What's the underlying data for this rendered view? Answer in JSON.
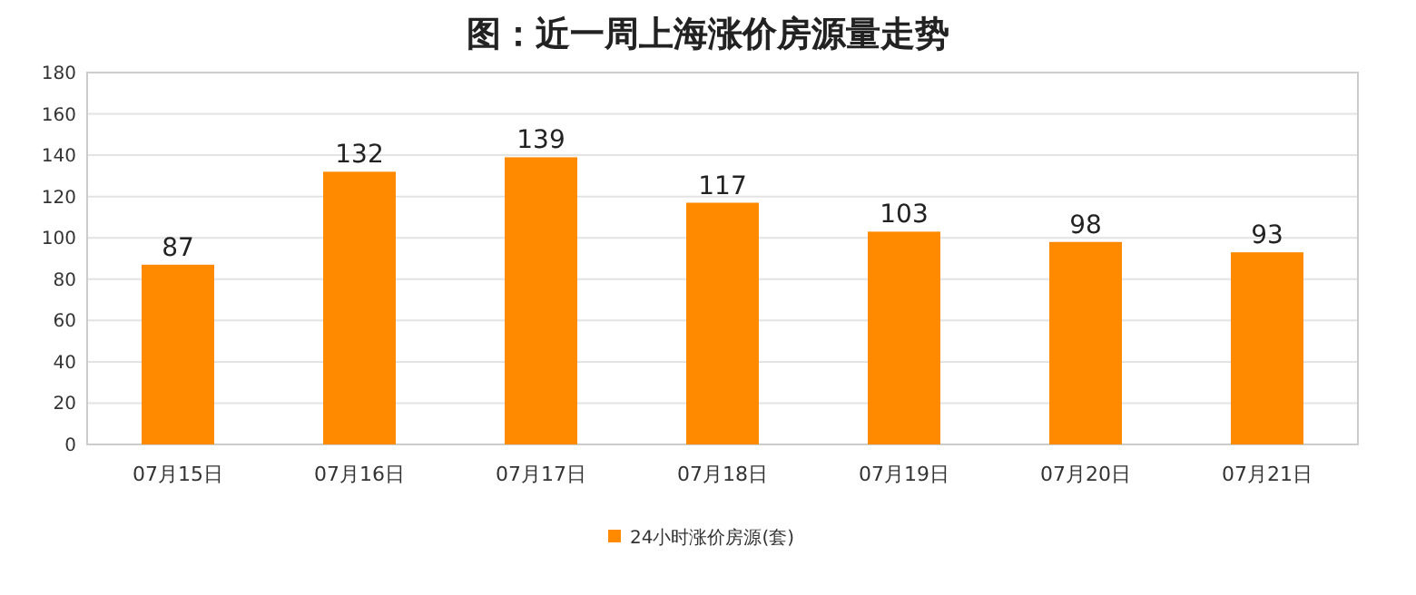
{
  "chart_data": {
    "type": "bar",
    "title": "图：近一周上海涨价房源量走势",
    "categories": [
      "07月15日",
      "07月16日",
      "07月17日",
      "07月18日",
      "07月19日",
      "07月20日",
      "07月21日"
    ],
    "series": [
      {
        "name": "24小时涨价房源(套)",
        "color": "#ff8a00",
        "values": [
          87,
          132,
          139,
          117,
          103,
          98,
          93
        ]
      }
    ],
    "ylim": [
      0,
      180
    ],
    "yticks": [
      0,
      20,
      40,
      60,
      80,
      100,
      120,
      140,
      160,
      180
    ],
    "grid": "y",
    "data_labels": true,
    "legend": "bottom"
  }
}
